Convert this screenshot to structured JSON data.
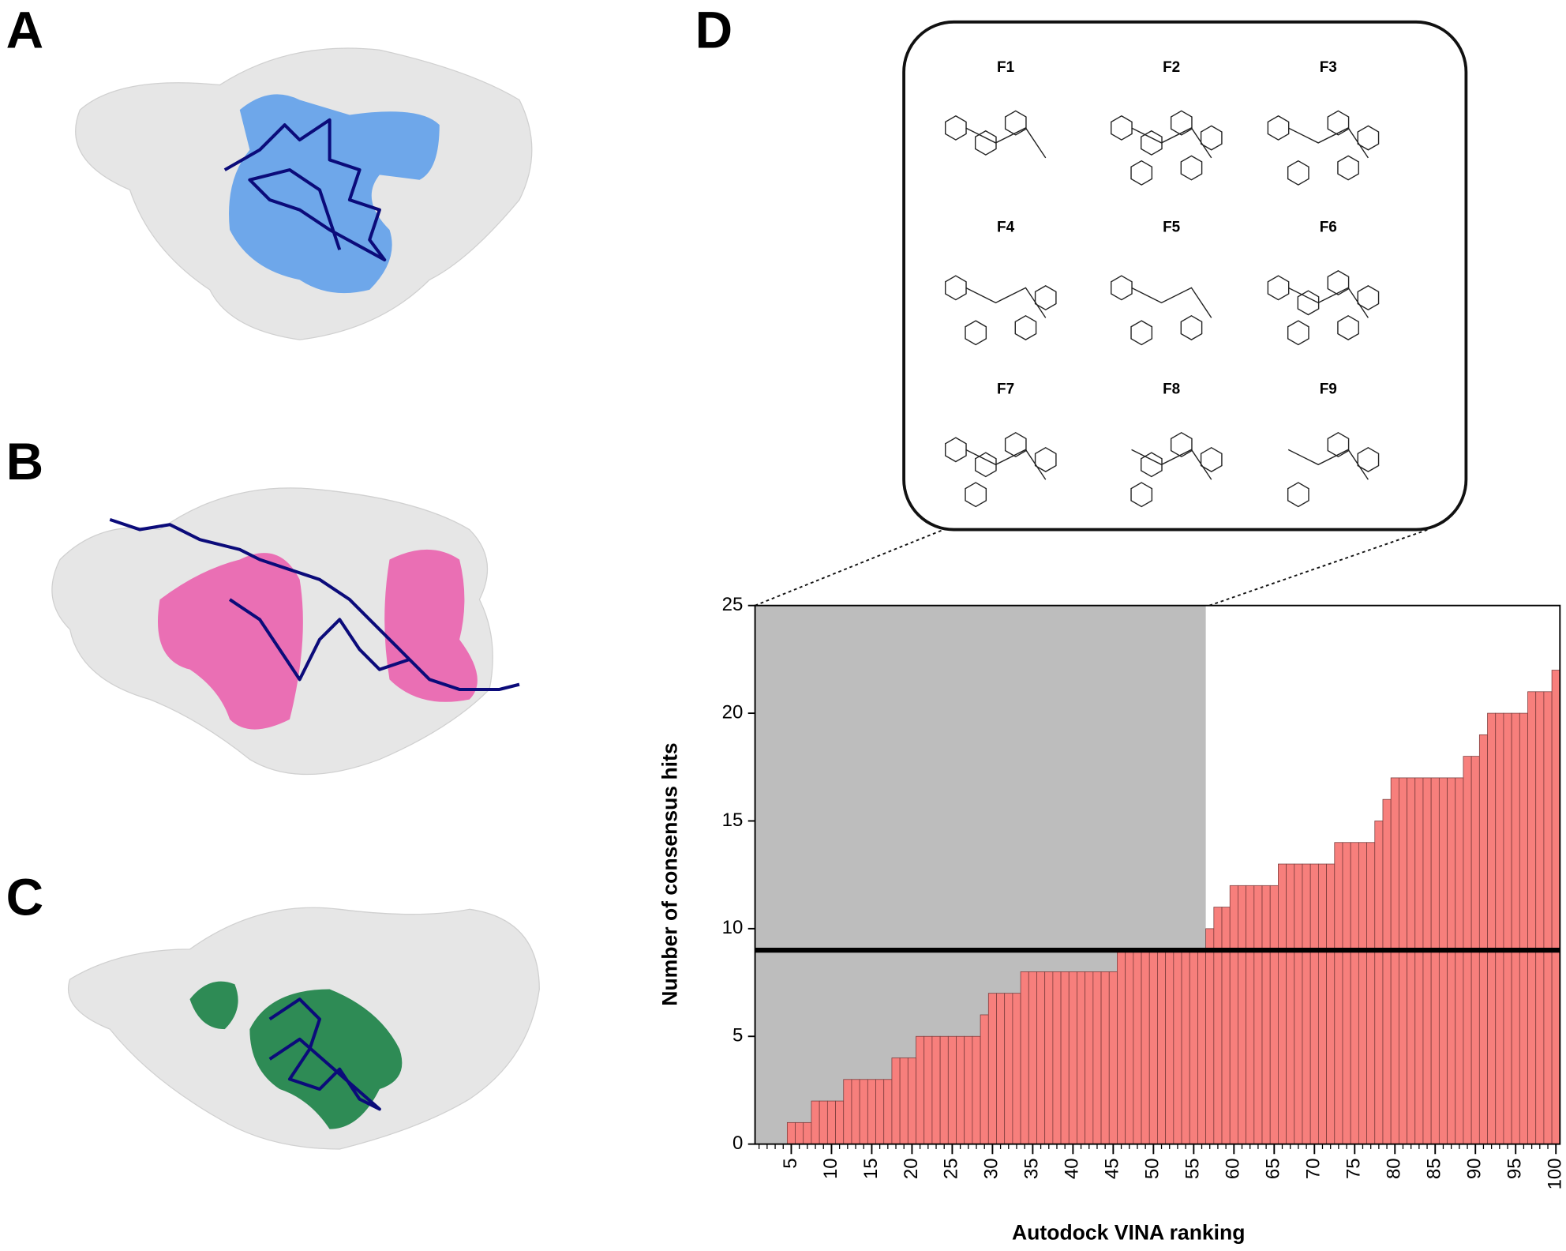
{
  "panel_labels": [
    "A",
    "B",
    "C"
  ],
  "compounds": [
    "F1",
    "F2",
    "F3",
    "F4",
    "F5",
    "F6",
    "F7",
    "F8",
    "F9"
  ],
  "chart_data": {
    "type": "bar",
    "panel_label": "D",
    "ylabel": "Number of consensus hits",
    "xlabel": "Autodock VINA ranking",
    "x": [
      1,
      2,
      3,
      4,
      5,
      6,
      7,
      8,
      9,
      10,
      11,
      12,
      13,
      14,
      15,
      16,
      17,
      18,
      19,
      20,
      21,
      22,
      23,
      24,
      25,
      26,
      27,
      28,
      29,
      30,
      31,
      32,
      33,
      34,
      35,
      36,
      37,
      38,
      39,
      40,
      41,
      42,
      43,
      44,
      45,
      46,
      47,
      48,
      49,
      50,
      51,
      52,
      53,
      54,
      55,
      56,
      57,
      58,
      59,
      60,
      61,
      62,
      63,
      64,
      65,
      66,
      67,
      68,
      69,
      70,
      71,
      72,
      73,
      74,
      75,
      76,
      77,
      78,
      79,
      80,
      81,
      82,
      83,
      84,
      85,
      86,
      87,
      88,
      89,
      90,
      91,
      92,
      93,
      94,
      95,
      96,
      97,
      98,
      99,
      100
    ],
    "values": [
      0,
      0,
      0,
      0,
      1,
      1,
      1,
      2,
      2,
      2,
      2,
      3,
      3,
      3,
      3,
      3,
      3,
      4,
      4,
      4,
      5,
      5,
      5,
      5,
      5,
      5,
      5,
      5,
      6,
      7,
      7,
      7,
      7,
      8,
      8,
      8,
      8,
      8,
      8,
      8,
      8,
      8,
      8,
      8,
      8,
      9,
      9,
      9,
      9,
      9,
      9,
      9,
      9,
      9,
      9,
      9,
      10,
      11,
      11,
      12,
      12,
      12,
      12,
      12,
      12,
      13,
      13,
      13,
      13,
      13,
      13,
      13,
      14,
      14,
      14,
      14,
      14,
      15,
      16,
      17,
      17,
      17,
      17,
      17,
      17,
      17,
      17,
      17,
      18,
      18,
      19,
      20,
      20,
      20,
      20,
      20,
      21,
      21,
      21,
      22
    ],
    "color": "#f77f7c",
    "edge_color": "#7a3a3a",
    "xlim": [
      0.5,
      100.5
    ],
    "xticks": [
      5,
      10,
      15,
      20,
      25,
      30,
      35,
      40,
      45,
      50,
      55,
      60,
      65,
      70,
      75,
      80,
      85,
      90,
      95,
      100
    ],
    "ylim": [
      0,
      25
    ],
    "yticks": [
      0,
      5,
      10,
      15,
      20,
      25
    ],
    "threshold": 9,
    "threshold_color": "#000000",
    "shade_until": 56,
    "shade_color": "#bdbdbd"
  }
}
